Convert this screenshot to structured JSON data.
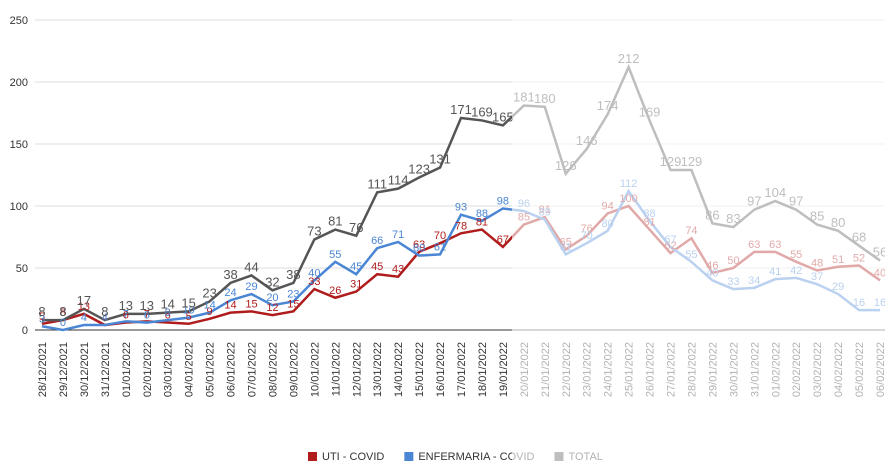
{
  "chart_data": {
    "type": "line",
    "categories": [
      "28/12/2021",
      "29/12/2021",
      "30/12/2021",
      "31/12/2021",
      "01/01/2022",
      "02/01/2022",
      "03/01/2022",
      "04/01/2022",
      "05/01/2022",
      "06/01/2022",
      "07/01/2022",
      "08/01/2022",
      "09/01/2022",
      "10/01/2022",
      "11/01/2022",
      "12/01/2022",
      "13/01/2022",
      "14/01/2022",
      "15/01/2022",
      "16/01/2022",
      "17/01/2022",
      "18/01/2022",
      "19/01/2022",
      "20/01/2022",
      "21/01/2022",
      "22/01/2022",
      "23/01/2022",
      "24/01/2022",
      "25/01/2022",
      "26/01/2022",
      "27/01/2022",
      "28/01/2022",
      "29/01/2022",
      "30/01/2022",
      "31/01/2022",
      "01/02/2022",
      "02/02/2022",
      "03/02/2022",
      "04/02/2022",
      "05/02/2022",
      "06/02/2022"
    ],
    "series": [
      {
        "name": "UTI - COVID",
        "color": "#b01c1c",
        "values": [
          5,
          8,
          13,
          4,
          6,
          7,
          6,
          5,
          9,
          14,
          15,
          12,
          15,
          33,
          26,
          31,
          45,
          43,
          63,
          70,
          78,
          81,
          67,
          85,
          91,
          65,
          76,
          94,
          100,
          81,
          62,
          74,
          46,
          50,
          63,
          63,
          55,
          48,
          51,
          52,
          40
        ]
      },
      {
        "name": "ENFERMARIA - COVID",
        "color": "#4a86d4",
        "values": [
          3,
          0,
          4,
          4,
          7,
          6,
          8,
          10,
          14,
          24,
          29,
          20,
          23,
          40,
          55,
          45,
          66,
          71,
          60,
          61,
          93,
          88,
          98,
          96,
          89,
          61,
          70,
          80,
          112,
          88,
          67,
          55,
          40,
          33,
          34,
          41,
          42,
          37,
          29,
          16,
          16
        ]
      },
      {
        "name": "TOTAL",
        "color": "#555555",
        "values": [
          8,
          8,
          17,
          8,
          13,
          13,
          14,
          15,
          23,
          38,
          44,
          32,
          38,
          73,
          81,
          76,
          111,
          114,
          123,
          131,
          171,
          169,
          165,
          181,
          180,
          126,
          146,
          174,
          212,
          169,
          129,
          129,
          86,
          83,
          97,
          104,
          97,
          85,
          80,
          68,
          56
        ]
      }
    ],
    "ylim": [
      0,
      250
    ],
    "yticks": [
      0,
      50,
      100,
      150,
      200,
      250
    ],
    "grid": true
  }
}
